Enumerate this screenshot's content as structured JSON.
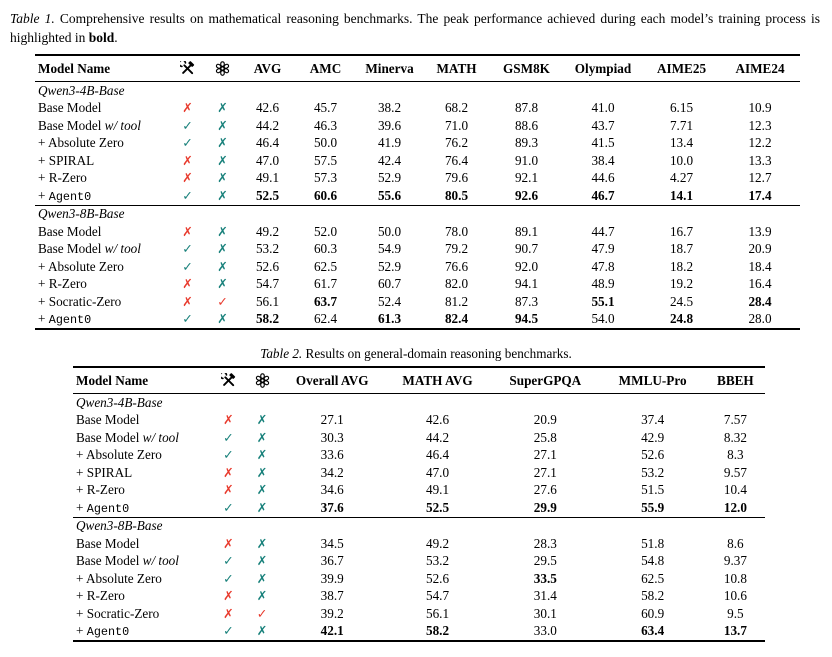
{
  "colors": {
    "teal_mark": "#17807A",
    "red_mark": "#E83A2D",
    "ink": "#000000"
  },
  "marks": {
    "check": "✓",
    "cross": "✗"
  },
  "icons": {
    "tools": "tools-icon",
    "openai": "openai-logo-icon"
  },
  "table1": {
    "caption": {
      "tag": "Table 1.",
      "body": " Comprehensive results on mathematical reasoning benchmarks. The peak performance achieved during each model’s training process is highlighted in ",
      "bold_word": "bold",
      "end": "."
    },
    "columns": [
      {
        "label": "Model Name",
        "align": "left"
      },
      {
        "icon": "tools"
      },
      {
        "icon": "openai"
      },
      {
        "label": "AVG"
      },
      {
        "label": "AMC"
      },
      {
        "label": "Minerva"
      },
      {
        "label": "MATH"
      },
      {
        "label": "GSM8K"
      },
      {
        "label": "Olympiad"
      },
      {
        "label": "AIME25"
      },
      {
        "label": "AIME24"
      }
    ],
    "sections": [
      {
        "name": "Qwen3-4B-Base",
        "rows": [
          {
            "model": [
              {
                "t": "Base Model"
              }
            ],
            "tool": "cross-red",
            "gpt": "cross-teal",
            "values": [
              "42.6",
              "45.7",
              "38.2",
              "68.2",
              "87.8",
              "41.0",
              "6.15",
              "10.9"
            ],
            "bold": []
          },
          {
            "model": [
              {
                "t": "Base Model "
              },
              {
                "t": "w/ tool",
                "style": "italic"
              }
            ],
            "tool": "check-teal",
            "gpt": "cross-teal",
            "values": [
              "44.2",
              "46.3",
              "39.6",
              "71.0",
              "88.6",
              "43.7",
              "7.71",
              "12.3"
            ],
            "bold": []
          },
          {
            "model": [
              {
                "t": "+ Absolute Zero"
              }
            ],
            "tool": "check-teal",
            "gpt": "cross-teal",
            "values": [
              "46.4",
              "50.0",
              "41.9",
              "76.2",
              "89.3",
              "41.5",
              "13.4",
              "12.2"
            ],
            "bold": []
          },
          {
            "model": [
              {
                "t": "+ SPIRAL"
              }
            ],
            "tool": "cross-red",
            "gpt": "cross-teal",
            "values": [
              "47.0",
              "57.5",
              "42.4",
              "76.4",
              "91.0",
              "38.4",
              "10.0",
              "13.3"
            ],
            "bold": []
          },
          {
            "model": [
              {
                "t": "+ R-Zero"
              }
            ],
            "tool": "cross-red",
            "gpt": "cross-teal",
            "values": [
              "49.1",
              "57.3",
              "52.9",
              "79.6",
              "92.1",
              "44.6",
              "4.27",
              "12.7"
            ],
            "bold": []
          },
          {
            "model": [
              {
                "t": "+ "
              },
              {
                "t": "Agent0",
                "style": "mono"
              }
            ],
            "tool": "check-teal",
            "gpt": "cross-teal",
            "values": [
              "52.5",
              "60.6",
              "55.6",
              "80.5",
              "92.6",
              "46.7",
              "14.1",
              "17.4"
            ],
            "bold": [
              0,
              1,
              2,
              3,
              4,
              5,
              6,
              7
            ]
          }
        ]
      },
      {
        "name": "Qwen3-8B-Base",
        "rows": [
          {
            "model": [
              {
                "t": "Base Model"
              }
            ],
            "tool": "cross-red",
            "gpt": "cross-teal",
            "values": [
              "49.2",
              "52.0",
              "50.0",
              "78.0",
              "89.1",
              "44.7",
              "16.7",
              "13.9"
            ],
            "bold": []
          },
          {
            "model": [
              {
                "t": "Base Model "
              },
              {
                "t": "w/ tool",
                "style": "italic"
              }
            ],
            "tool": "check-teal",
            "gpt": "cross-teal",
            "values": [
              "53.2",
              "60.3",
              "54.9",
              "79.2",
              "90.7",
              "47.9",
              "18.7",
              "20.9"
            ],
            "bold": []
          },
          {
            "model": [
              {
                "t": "+ Absolute Zero"
              }
            ],
            "tool": "check-teal",
            "gpt": "cross-teal",
            "values": [
              "52.6",
              "62.5",
              "52.9",
              "76.6",
              "92.0",
              "47.8",
              "18.2",
              "18.4"
            ],
            "bold": []
          },
          {
            "model": [
              {
                "t": "+ R-Zero"
              }
            ],
            "tool": "cross-red",
            "gpt": "cross-teal",
            "values": [
              "54.7",
              "61.7",
              "60.7",
              "82.0",
              "94.1",
              "48.9",
              "19.2",
              "16.4"
            ],
            "bold": []
          },
          {
            "model": [
              {
                "t": "+ Socratic-Zero"
              }
            ],
            "tool": "cross-red",
            "gpt": "check-red",
            "values": [
              "56.1",
              "63.7",
              "52.4",
              "81.2",
              "87.3",
              "55.1",
              "24.5",
              "28.4"
            ],
            "bold": [
              1,
              5,
              7
            ]
          },
          {
            "model": [
              {
                "t": "+ "
              },
              {
                "t": "Agent0",
                "style": "mono"
              }
            ],
            "tool": "check-teal",
            "gpt": "cross-teal",
            "values": [
              "58.2",
              "62.4",
              "61.3",
              "82.4",
              "94.5",
              "54.0",
              "24.8",
              "28.0"
            ],
            "bold": [
              0,
              2,
              3,
              4,
              6
            ]
          }
        ]
      }
    ]
  },
  "table2": {
    "caption": {
      "tag": "Table 2.",
      "body": " Results on general-domain reasoning benchmarks."
    },
    "columns": [
      {
        "label": "Model Name",
        "align": "left"
      },
      {
        "icon": "tools"
      },
      {
        "icon": "openai"
      },
      {
        "label": "Overall AVG"
      },
      {
        "label": "MATH AVG"
      },
      {
        "label": "SuperGPQA"
      },
      {
        "label": "MMLU-Pro"
      },
      {
        "label": "BBEH"
      }
    ],
    "sections": [
      {
        "name": "Qwen3-4B-Base",
        "rows": [
          {
            "model": [
              {
                "t": "Base Model"
              }
            ],
            "tool": "cross-red",
            "gpt": "cross-teal",
            "values": [
              "27.1",
              "42.6",
              "20.9",
              "37.4",
              "7.57"
            ],
            "bold": []
          },
          {
            "model": [
              {
                "t": "Base Model "
              },
              {
                "t": "w/ tool",
                "style": "italic"
              }
            ],
            "tool": "check-teal",
            "gpt": "cross-teal",
            "values": [
              "30.3",
              "44.2",
              "25.8",
              "42.9",
              "8.32"
            ],
            "bold": []
          },
          {
            "model": [
              {
                "t": "+ Absolute Zero"
              }
            ],
            "tool": "check-teal",
            "gpt": "cross-teal",
            "values": [
              "33.6",
              "46.4",
              "27.1",
              "52.6",
              "8.3"
            ],
            "bold": []
          },
          {
            "model": [
              {
                "t": "+ SPIRAL"
              }
            ],
            "tool": "cross-red",
            "gpt": "cross-teal",
            "values": [
              "34.2",
              "47.0",
              "27.1",
              "53.2",
              "9.57"
            ],
            "bold": []
          },
          {
            "model": [
              {
                "t": "+ R-Zero"
              }
            ],
            "tool": "cross-red",
            "gpt": "cross-teal",
            "values": [
              "34.6",
              "49.1",
              "27.6",
              "51.5",
              "10.4"
            ],
            "bold": []
          },
          {
            "model": [
              {
                "t": "+ "
              },
              {
                "t": "Agent0",
                "style": "mono"
              }
            ],
            "tool": "check-teal",
            "gpt": "cross-teal",
            "values": [
              "37.6",
              "52.5",
              "29.9",
              "55.9",
              "12.0"
            ],
            "bold": [
              0,
              1,
              2,
              3,
              4
            ]
          }
        ]
      },
      {
        "name": "Qwen3-8B-Base",
        "rows": [
          {
            "model": [
              {
                "t": "Base Model"
              }
            ],
            "tool": "cross-red",
            "gpt": "cross-teal",
            "values": [
              "34.5",
              "49.2",
              "28.3",
              "51.8",
              "8.6"
            ],
            "bold": []
          },
          {
            "model": [
              {
                "t": "Base Model "
              },
              {
                "t": "w/ tool",
                "style": "italic"
              }
            ],
            "tool": "check-teal",
            "gpt": "cross-teal",
            "values": [
              "36.7",
              "53.2",
              "29.5",
              "54.8",
              "9.37"
            ],
            "bold": []
          },
          {
            "model": [
              {
                "t": "+ Absolute Zero"
              }
            ],
            "tool": "check-teal",
            "gpt": "cross-teal",
            "values": [
              "39.9",
              "52.6",
              "33.5",
              "62.5",
              "10.8"
            ],
            "bold": [
              2
            ]
          },
          {
            "model": [
              {
                "t": "+ R-Zero"
              }
            ],
            "tool": "cross-red",
            "gpt": "cross-teal",
            "values": [
              "38.7",
              "54.7",
              "31.4",
              "58.2",
              "10.6"
            ],
            "bold": []
          },
          {
            "model": [
              {
                "t": "+ Socratic-Zero"
              }
            ],
            "tool": "cross-red",
            "gpt": "check-red",
            "values": [
              "39.2",
              "56.1",
              "30.1",
              "60.9",
              "9.5"
            ],
            "bold": []
          },
          {
            "model": [
              {
                "t": "+ "
              },
              {
                "t": "Agent0",
                "style": "mono"
              }
            ],
            "tool": "check-teal",
            "gpt": "cross-teal",
            "values": [
              "42.1",
              "58.2",
              "33.0",
              "63.4",
              "13.7"
            ],
            "bold": [
              0,
              1,
              3,
              4
            ]
          }
        ]
      }
    ]
  }
}
